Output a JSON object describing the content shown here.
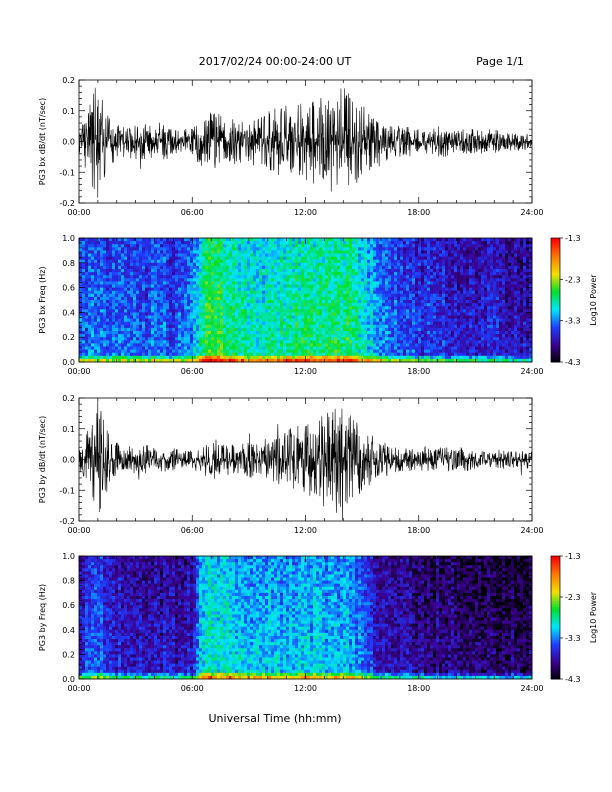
{
  "header": {
    "title": "2017/02/24  00:00-24:00 UT",
    "page": "Page 1/1"
  },
  "footer": {
    "xlabel": "Universal Time (hh:mm)"
  },
  "colorbar": {
    "label": "Log10 Power",
    "ticks": [
      "-1.3",
      "-2.3",
      "-3.3",
      "-4.3"
    ],
    "stops": [
      "#000000",
      "#3a0090",
      "#1f3cff",
      "#00e6ff",
      "#00e030",
      "#f0e000",
      "#ff7a00",
      "#ff0000"
    ]
  },
  "chart_data": [
    {
      "type": "line",
      "panel": "bx-waveform",
      "ylabel": "PG3 bx dB/dt (nT/sec)",
      "xlim": [
        0,
        24
      ],
      "ylim": [
        -0.2,
        0.2
      ],
      "xticks": [
        "00:00",
        "06:00",
        "12:00",
        "18:00",
        "24:00"
      ],
      "yticks": [
        "0.2",
        "0.1",
        "0.0",
        "-0.1",
        "-0.2"
      ],
      "series": [
        {
          "x_hours": [
            0,
            0.5,
            1,
            1.5,
            2,
            2.5,
            3,
            3.5,
            4,
            4.5,
            5,
            5.5,
            6,
            6.5,
            7,
            7.5,
            8,
            8.5,
            9,
            9.5,
            10,
            10.5,
            11,
            11.5,
            12,
            12.5,
            13,
            13.5,
            14,
            14.5,
            15,
            15.5,
            16,
            16.5,
            17,
            17.5,
            18,
            18.5,
            19,
            19.5,
            20,
            20.5,
            21,
            21.5,
            22,
            22.5,
            23,
            23.5,
            24
          ],
          "envelope": [
            0.04,
            0.12,
            0.2,
            0.09,
            0.06,
            0.05,
            0.06,
            0.06,
            0.05,
            0.06,
            0.04,
            0.04,
            0.05,
            0.08,
            0.1,
            0.09,
            0.08,
            0.07,
            0.08,
            0.08,
            0.1,
            0.11,
            0.12,
            0.12,
            0.13,
            0.14,
            0.15,
            0.16,
            0.18,
            0.17,
            0.12,
            0.1,
            0.08,
            0.06,
            0.05,
            0.05,
            0.04,
            0.04,
            0.05,
            0.05,
            0.04,
            0.04,
            0.04,
            0.04,
            0.04,
            0.03,
            0.03,
            0.03,
            0.03
          ]
        }
      ]
    },
    {
      "type": "heatmap",
      "panel": "bx-spectrogram",
      "ylabel": "PG3 bx Freq (Hz)",
      "xlim": [
        0,
        24
      ],
      "ylim": [
        0.0,
        1.0
      ],
      "zlim": [
        -4.3,
        -1.3
      ],
      "xticks": [
        "00:00",
        "06:00",
        "12:00",
        "18:00",
        "24:00"
      ],
      "yticks": [
        "1.0",
        "0.8",
        "0.6",
        "0.4",
        "0.2",
        "0.0"
      ],
      "activity_profile": [
        0.32,
        0.34,
        0.36,
        0.33,
        0.32,
        0.33,
        0.31,
        0.32,
        0.33,
        0.32,
        0.3,
        0.31,
        0.34,
        0.55,
        0.58,
        0.56,
        0.52,
        0.5,
        0.48,
        0.48,
        0.5,
        0.5,
        0.52,
        0.52,
        0.53,
        0.54,
        0.54,
        0.55,
        0.55,
        0.53,
        0.48,
        0.42,
        0.38,
        0.34,
        0.32,
        0.3,
        0.28,
        0.27,
        0.26,
        0.26,
        0.25,
        0.24,
        0.24,
        0.24,
        0.23,
        0.22,
        0.21,
        0.2,
        0.2
      ]
    },
    {
      "type": "line",
      "panel": "by-waveform",
      "ylabel": "PG3 by dB/dt (nT/sec)",
      "xlim": [
        0,
        24
      ],
      "ylim": [
        -0.2,
        0.2
      ],
      "xticks": [
        "00:00",
        "06:00",
        "12:00",
        "18:00",
        "24:00"
      ],
      "yticks": [
        "0.2",
        "0.1",
        "0.0",
        "-0.1",
        "-0.2"
      ],
      "series": [
        {
          "x_hours": [
            0,
            0.5,
            1,
            1.5,
            2,
            2.5,
            3,
            3.5,
            4,
            4.5,
            5,
            5.5,
            6,
            6.5,
            7,
            7.5,
            8,
            8.5,
            9,
            9.5,
            10,
            10.5,
            11,
            11.5,
            12,
            12.5,
            13,
            13.5,
            14,
            14.5,
            15,
            15.5,
            16,
            16.5,
            17,
            17.5,
            18,
            18.5,
            19,
            19.5,
            20,
            20.5,
            21,
            21.5,
            22,
            22.5,
            23,
            23.5,
            24
          ],
          "envelope": [
            0.04,
            0.1,
            0.2,
            0.1,
            0.06,
            0.04,
            0.05,
            0.05,
            0.04,
            0.04,
            0.04,
            0.03,
            0.03,
            0.05,
            0.06,
            0.05,
            0.05,
            0.05,
            0.06,
            0.06,
            0.07,
            0.08,
            0.1,
            0.11,
            0.12,
            0.14,
            0.16,
            0.18,
            0.17,
            0.15,
            0.1,
            0.08,
            0.06,
            0.05,
            0.04,
            0.04,
            0.04,
            0.04,
            0.04,
            0.04,
            0.04,
            0.04,
            0.03,
            0.03,
            0.03,
            0.03,
            0.03,
            0.03,
            0.03
          ]
        }
      ]
    },
    {
      "type": "heatmap",
      "panel": "by-spectrogram",
      "ylabel": "PG3 by Freq (Hz)",
      "xlim": [
        0,
        24
      ],
      "ylim": [
        0.0,
        1.0
      ],
      "zlim": [
        -4.3,
        -1.3
      ],
      "xticks": [
        "00:00",
        "06:00",
        "12:00",
        "18:00",
        "24:00"
      ],
      "yticks": [
        "1.0",
        "0.8",
        "0.6",
        "0.4",
        "0.2",
        "0.0"
      ],
      "activity_profile": [
        0.24,
        0.26,
        0.3,
        0.26,
        0.24,
        0.23,
        0.22,
        0.22,
        0.22,
        0.21,
        0.2,
        0.2,
        0.22,
        0.44,
        0.48,
        0.46,
        0.44,
        0.42,
        0.4,
        0.4,
        0.41,
        0.41,
        0.42,
        0.42,
        0.42,
        0.42,
        0.41,
        0.41,
        0.41,
        0.38,
        0.32,
        0.26,
        0.22,
        0.2,
        0.18,
        0.17,
        0.16,
        0.15,
        0.15,
        0.14,
        0.14,
        0.13,
        0.13,
        0.13,
        0.12,
        0.12,
        0.11,
        0.11,
        0.11
      ]
    }
  ]
}
